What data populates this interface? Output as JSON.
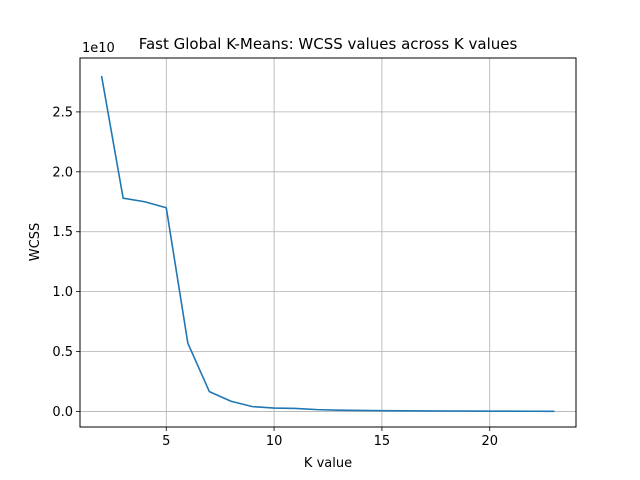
{
  "chart_data": {
    "type": "line",
    "title": "Fast Global K-Means: WCSS values across K values",
    "xlabel": "K value",
    "ylabel": "WCSS",
    "y_offset_label": "1e10",
    "xlim": [
      1.0,
      24.0
    ],
    "ylim": [
      -0.13,
      2.95
    ],
    "x_ticks": [
      5,
      10,
      15,
      20
    ],
    "x_tick_labels": [
      "5",
      "10",
      "15",
      "20"
    ],
    "y_ticks": [
      0.0,
      0.5,
      1.0,
      1.5,
      2.0,
      2.5
    ],
    "y_tick_labels": [
      "0.0",
      "0.5",
      "1.0",
      "1.5",
      "2.0",
      "2.5"
    ],
    "grid": true,
    "line_color": "#1f77b4",
    "series": [
      {
        "x": [
          2,
          3,
          4,
          5,
          6,
          7,
          8,
          9,
          10,
          11,
          12,
          13,
          14,
          15,
          16,
          17,
          18,
          19,
          20,
          21,
          22,
          23
        ],
        "values": [
          2.8,
          1.78,
          1.75,
          1.7,
          0.57,
          0.165,
          0.085,
          0.04,
          0.028,
          0.025,
          0.015,
          0.01,
          0.008,
          0.006,
          0.005,
          0.004,
          0.003,
          0.003,
          0.002,
          0.002,
          0.0015,
          0.001
        ]
      }
    ]
  }
}
